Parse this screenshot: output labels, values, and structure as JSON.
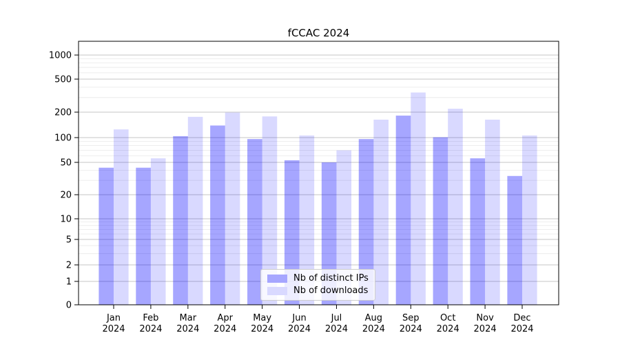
{
  "figure": {
    "background": "#ffffff"
  },
  "chart_data": {
    "type": "bar",
    "title": "fCCAC 2024",
    "months": [
      "Jan",
      "Feb",
      "Mar",
      "Apr",
      "May",
      "Jun",
      "Jul",
      "Aug",
      "Sep",
      "Oct",
      "Nov",
      "Dec"
    ],
    "year_label": "2024",
    "series": [
      {
        "name": "Nb of distinct IPs",
        "color": "#0000ff",
        "alpha": 0.35,
        "rendered_color": "#a6a6ff",
        "values": [
          43,
          43,
          104,
          139,
          96,
          53,
          50,
          96,
          182,
          101,
          56,
          34
        ]
      },
      {
        "name": "Nb of downloads",
        "color": "#0000ff",
        "alpha": 0.15,
        "rendered_color": "#d9d9ff",
        "values": [
          125,
          56,
          176,
          198,
          178,
          106,
          70,
          163,
          345,
          220,
          163,
          106
        ]
      }
    ],
    "xlabel": "",
    "ylabel": "",
    "yscale": "symlog",
    "yticks": [
      0,
      1,
      2,
      5,
      10,
      20,
      50,
      100,
      200,
      500,
      1000
    ],
    "ylim": [
      0,
      1500
    ],
    "grid": true,
    "legend_position": "lower center",
    "colors": {
      "major_grid": "#c4c4c4",
      "minor_grid": "#ebebeb",
      "axis": "#000000",
      "text": "#000000"
    }
  }
}
